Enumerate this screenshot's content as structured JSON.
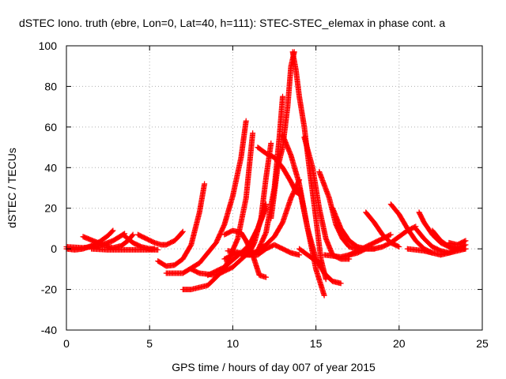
{
  "chart_data": {
    "type": "scatter",
    "title": "dSTEC Iono. truth (ebre, Lon=0, Lat=40, h=111): STEC-STEC_elemax in phase cont. a",
    "xlabel": "GPS time / hours of day 007 of year 2015",
    "ylabel": "dSTEC  / TECUs",
    "xlim": [
      0,
      25
    ],
    "ylim": [
      -40,
      100
    ],
    "x_ticks": [
      "0",
      "5",
      "10",
      "15",
      "20",
      "25"
    ],
    "y_ticks": [
      "-40",
      "-20",
      "0",
      "20",
      "40",
      "60",
      "80",
      "100"
    ],
    "grid": true,
    "legend": "none",
    "marker": "plus",
    "marker_color": "#ff0000",
    "series": [
      {
        "x": [
          0,
          0.5,
          1.0,
          1.5,
          2.0,
          2.5,
          2.8
        ],
        "y": [
          0,
          -0.5,
          0,
          1.5,
          3.5,
          6.5,
          9
        ]
      },
      {
        "x": [
          1.0,
          1.6,
          2.2,
          2.8,
          3.3,
          3.7,
          4.0
        ],
        "y": [
          6,
          4,
          2,
          0.5,
          1.5,
          4,
          7
        ]
      },
      {
        "x": [
          0,
          1.0,
          2.0,
          2.8,
          3.5
        ],
        "y": [
          1,
          0.5,
          1.5,
          4,
          7.5
        ]
      },
      {
        "x": [
          3.4,
          4.0,
          4.5,
          5.0,
          5.3
        ],
        "y": [
          7,
          3,
          1,
          0,
          0
        ]
      },
      {
        "x": [
          1.5,
          2.5,
          3.5,
          4.5,
          5.5
        ],
        "y": [
          0,
          -0.5,
          -0.5,
          -0.5,
          -0.5
        ]
      },
      {
        "x": [
          4.3,
          4.8,
          5.3,
          5.7,
          6.0,
          6.5,
          6.8,
          7.0
        ],
        "y": [
          7,
          5,
          3,
          2,
          2,
          4,
          6.5,
          8.5
        ]
      },
      {
        "x": [
          5.5,
          6.0,
          6.5,
          7.0,
          7.5,
          8.0,
          8.3
        ],
        "y": [
          -6,
          -8.5,
          -8,
          -5,
          2,
          18,
          32
        ]
      },
      {
        "x": [
          6.0,
          7.0,
          8.0,
          9.0,
          9.5,
          10.0,
          10.5,
          10.8
        ],
        "y": [
          -12,
          -12,
          -7,
          3,
          12,
          26,
          45,
          63
        ]
      },
      {
        "x": [
          7.0,
          7.5,
          8.5,
          9.5,
          10.3,
          10.8,
          11.2
        ],
        "y": [
          -20,
          -20,
          -18,
          -10,
          5,
          25,
          57
        ]
      },
      {
        "x": [
          7.5,
          8.0,
          9.0,
          10.0,
          10.8,
          11.5,
          12.0
        ],
        "y": [
          -10,
          -12,
          -13,
          -9,
          -3,
          10,
          20
        ]
      },
      {
        "x": [
          8.5,
          9.5,
          10.5,
          11.0,
          11.5,
          12.0
        ],
        "y": [
          -13,
          -9,
          -2,
          2,
          10,
          22
        ]
      },
      {
        "x": [
          9.5,
          10.0,
          10.5,
          11.0,
          11.3,
          11.7,
          12.0,
          12.3
        ],
        "y": [
          -5,
          -3,
          -2,
          -2,
          3,
          15,
          35,
          52
        ]
      },
      {
        "x": [
          9.5,
          10.0,
          10.5,
          10.8,
          11.2,
          11.6,
          12.0
        ],
        "y": [
          7,
          9,
          8,
          4,
          -3,
          -13,
          -14
        ]
      },
      {
        "x": [
          10.5,
          11.0,
          11.5,
          12.0,
          12.5,
          12.8,
          13.0
        ],
        "y": [
          -3,
          -3,
          -1,
          8,
          30,
          55,
          75
        ]
      },
      {
        "x": [
          9.7,
          10.5,
          11.0,
          11.5,
          12.0,
          12.5,
          13.0,
          13.5,
          14.0
        ],
        "y": [
          -1,
          -2,
          -3,
          -3,
          0,
          2,
          0,
          -2,
          -3
        ]
      },
      {
        "x": [
          11.0,
          11.5,
          12.0,
          12.5,
          13.0,
          13.5,
          14.0
        ],
        "y": [
          -3,
          -1,
          2,
          6,
          13,
          25,
          34
        ]
      },
      {
        "x": [
          11.5,
          12.0,
          12.5,
          13.0,
          13.5,
          13.8,
          14.0
        ],
        "y": [
          50,
          47,
          45,
          40,
          33,
          28,
          27
        ]
      },
      {
        "x": [
          12.3,
          12.7,
          13.0,
          13.3,
          13.5,
          13.7
        ],
        "y": [
          15,
          40,
          50,
          70,
          90,
          97
        ]
      },
      {
        "x": [
          13.6,
          13.8,
          14.0,
          14.3,
          14.6,
          15.0,
          15.3,
          15.6
        ],
        "y": [
          97,
          88,
          75,
          60,
          40,
          15,
          -5,
          -15
        ]
      },
      {
        "x": [
          13.0,
          13.5,
          14.0,
          14.5,
          15.0,
          15.5
        ],
        "y": [
          56,
          46,
          32,
          10,
          -10,
          -23
        ]
      },
      {
        "x": [
          14.0,
          14.5,
          15.0,
          15.5,
          16.0,
          16.5
        ],
        "y": [
          30,
          10,
          -5,
          -12,
          -16,
          -17
        ]
      },
      {
        "x": [
          14.3,
          14.8,
          15.2,
          15.6,
          16.0,
          16.5,
          17.0
        ],
        "y": [
          55,
          40,
          20,
          5,
          -3,
          -5,
          -5
        ]
      },
      {
        "x": [
          14.0,
          14.5,
          15.0,
          15.3
        ],
        "y": [
          0,
          -3,
          -6,
          -7
        ]
      },
      {
        "x": [
          15.2,
          15.8,
          16.2,
          16.6,
          17.0,
          17.5
        ],
        "y": [
          38,
          25,
          12,
          5,
          1,
          0
        ]
      },
      {
        "x": [
          16.0,
          16.5,
          17.0,
          17.5,
          18.0,
          18.5
        ],
        "y": [
          20,
          10,
          4,
          1,
          0,
          0
        ]
      },
      {
        "x": [
          15.5,
          16.5,
          17.0,
          17.5,
          18.0,
          18.5,
          19.0,
          19.5
        ],
        "y": [
          -3,
          -4,
          -3,
          -1,
          1,
          3,
          5,
          7
        ]
      },
      {
        "x": [
          17.0,
          17.5,
          18.0,
          18.5,
          19.0,
          19.5,
          20.0,
          20.5,
          21.0
        ],
        "y": [
          -3,
          -2,
          0,
          0,
          1,
          3,
          6,
          9,
          11
        ]
      },
      {
        "x": [
          18.0,
          18.5,
          19.0,
          19.5,
          20.0
        ],
        "y": [
          18,
          13,
          7,
          3,
          1
        ]
      },
      {
        "x": [
          19.5,
          20.0,
          20.5,
          21.0,
          21.5,
          22.0
        ],
        "y": [
          22,
          17,
          10,
          4,
          0,
          -2
        ]
      },
      {
        "x": [
          21.2,
          21.5,
          22.0,
          22.5,
          23.0,
          23.5
        ],
        "y": [
          18,
          13,
          7,
          3,
          1,
          0
        ]
      },
      {
        "x": [
          21.0,
          21.5,
          22.0,
          22.5,
          23.0,
          23.5,
          24.0
        ],
        "y": [
          10,
          5,
          1,
          -1,
          -2,
          -1,
          0
        ]
      },
      {
        "x": [
          20.5,
          21.5,
          22.0,
          22.5,
          23.0,
          23.5,
          24.0
        ],
        "y": [
          0,
          -1,
          -2,
          -3,
          -2,
          0,
          2
        ]
      },
      {
        "x": [
          22.0,
          22.5,
          23.0,
          23.5,
          24.0
        ],
        "y": [
          9,
          4,
          1,
          0,
          0
        ]
      },
      {
        "x": [
          23.0,
          23.5,
          24.0
        ],
        "y": [
          3,
          2,
          4
        ]
      }
    ]
  }
}
